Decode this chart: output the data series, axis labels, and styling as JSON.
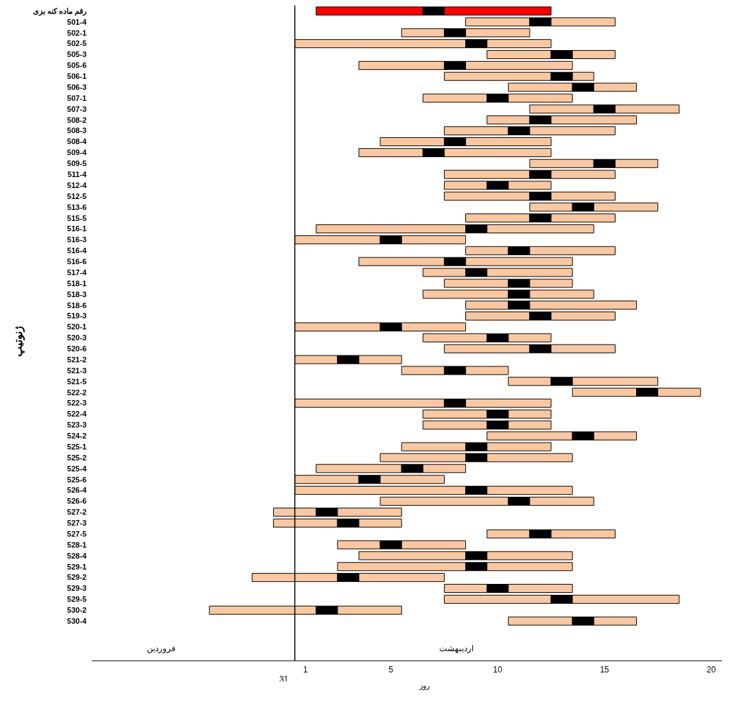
{
  "chart_data": {
    "type": "bar",
    "orientation": "horizontal",
    "xlabel": "روز",
    "ylabel": "ژنوتیپ",
    "categories": [
      "رقم ماده کنه بزی",
      "501-4",
      "502-1",
      "502-5",
      "505-3",
      "505-6",
      "506-1",
      "506-3",
      "507-1",
      "507-3",
      "508-2",
      "508-3",
      "508-4",
      "509-4",
      "509-5",
      "511-4",
      "512-4",
      "512-5",
      "513-6",
      "515-5",
      "516-1",
      "516-3",
      "516-4",
      "516-6",
      "517-4",
      "518-1",
      "518-3",
      "518-6",
      "519-3",
      "520-1",
      "520-3",
      "520-6",
      "521-2",
      "521-3",
      "521-5",
      "522-2",
      "522-3",
      "522-4",
      "523-3",
      "524-2",
      "525-1",
      "525-2",
      "525-4",
      "525-6",
      "526-4",
      "526-6",
      "527-2",
      "527-3",
      "527-5",
      "528-1",
      "528-4",
      "529-1",
      "529-2",
      "529-3",
      "529-5",
      "530-2",
      "530-4"
    ],
    "series": [
      {
        "color": "#f9c8a0",
        "colors": [
          "#ff0000",
          "#f9c8a0",
          "#f9c8a0",
          "#f9c8a0",
          "#f9c8a0",
          "#f9c8a0",
          "#f9c8a0",
          "#f9c8a0",
          "#f9c8a0",
          "#f9c8a0",
          "#f9c8a0",
          "#f9c8a0",
          "#f9c8a0",
          "#f9c8a0",
          "#f9c8a0",
          "#f9c8a0",
          "#f9c8a0",
          "#f9c8a0",
          "#f9c8a0",
          "#f9c8a0",
          "#f9c8a0",
          "#f9c8a0",
          "#f9c8a0",
          "#f9c8a0",
          "#f9c8a0",
          "#f9c8a0",
          "#f9c8a0",
          "#f9c8a0",
          "#f9c8a0",
          "#f9c8a0",
          "#f9c8a0",
          "#f9c8a0",
          "#f9c8a0",
          "#f9c8a0",
          "#f9c8a0",
          "#f9c8a0",
          "#f9c8a0",
          "#f9c8a0",
          "#f9c8a0",
          "#f9c8a0",
          "#f9c8a0",
          "#f9c8a0",
          "#f9c8a0",
          "#f9c8a0",
          "#f9c8a0",
          "#f9c8a0",
          "#f9c8a0",
          "#f9c8a0",
          "#f9c8a0",
          "#f9c8a0",
          "#f9c8a0",
          "#f9c8a0",
          "#f9c8a0",
          "#f9c8a0",
          "#f9c8a0",
          "#f9c8a0",
          "#f9c8a0"
        ],
        "base": [
          1.5,
          8.5,
          5.5,
          0.5,
          9.5,
          3.5,
          7.5,
          10.5,
          6.5,
          11.5,
          9.5,
          7.5,
          4.5,
          3.5,
          11.5,
          7.5,
          7.5,
          7.5,
          11.5,
          8.5,
          1.5,
          0.5,
          8.5,
          3.5,
          6.5,
          7.5,
          6.5,
          8.5,
          8.5,
          0.5,
          6.5,
          7.5,
          0.5,
          5.5,
          10.5,
          13.5,
          0.5,
          6.5,
          6.5,
          9.5,
          5.5,
          4.5,
          1.5,
          0.5,
          0.5,
          4.5,
          -0.5,
          -0.5,
          9.5,
          2.5,
          3.5,
          2.5,
          -1.5,
          7.5,
          7.5,
          -3.5,
          10.5
        ],
        "values": [
          5,
          3,
          2,
          8,
          3,
          4,
          5,
          3,
          3,
          3,
          2,
          3,
          3,
          3,
          3,
          4,
          2,
          4,
          2,
          3,
          7,
          4,
          2,
          4,
          2,
          3,
          4,
          2,
          3,
          4,
          3,
          4,
          2,
          2,
          2,
          3,
          7,
          3,
          3,
          4,
          3,
          4,
          4,
          3,
          8,
          6,
          2,
          3,
          2,
          2,
          5,
          6,
          4,
          2,
          5,
          5,
          3
        ]
      },
      {
        "color": "#000000",
        "base": [
          6.5,
          11.5,
          7.5,
          8.5,
          12.5,
          7.5,
          12.5,
          13.5,
          9.5,
          14.5,
          11.5,
          10.5,
          7.5,
          6.5,
          14.5,
          11.5,
          9.5,
          11.5,
          13.5,
          11.5,
          8.5,
          4.5,
          10.5,
          7.5,
          8.5,
          10.5,
          10.5,
          10.5,
          11.5,
          4.5,
          9.5,
          11.5,
          2.5,
          7.5,
          12.5,
          16.5,
          7.5,
          9.5,
          9.5,
          13.5,
          8.5,
          8.5,
          5.5,
          3.5,
          8.5,
          10.5,
          1.5,
          2.5,
          11.5,
          4.5,
          8.5,
          8.5,
          2.5,
          9.5,
          12.5,
          1.5,
          13.5
        ],
        "values": [
          1,
          1,
          1,
          1,
          1,
          1,
          1,
          1,
          1,
          1,
          1,
          1,
          1,
          1,
          1,
          1,
          1,
          1,
          1,
          1,
          1,
          1,
          1,
          1,
          1,
          1,
          1,
          1,
          1,
          1,
          1,
          1,
          1,
          1,
          1,
          1,
          1,
          1,
          1,
          1,
          1,
          1,
          1,
          1,
          1,
          1,
          1,
          1,
          1,
          1,
          1,
          1,
          1,
          1,
          1,
          1,
          1
        ]
      },
      {
        "color": "#f9c8a0",
        "colors": [
          "#ff0000",
          "#f9c8a0",
          "#f9c8a0",
          "#f9c8a0",
          "#f9c8a0",
          "#f9c8a0",
          "#f9c8a0",
          "#f9c8a0",
          "#f9c8a0",
          "#f9c8a0",
          "#f9c8a0",
          "#f9c8a0",
          "#f9c8a0",
          "#f9c8a0",
          "#f9c8a0",
          "#f9c8a0",
          "#f9c8a0",
          "#f9c8a0",
          "#f9c8a0",
          "#f9c8a0",
          "#f9c8a0",
          "#f9c8a0",
          "#f9c8a0",
          "#f9c8a0",
          "#f9c8a0",
          "#f9c8a0",
          "#f9c8a0",
          "#f9c8a0",
          "#f9c8a0",
          "#f9c8a0",
          "#f9c8a0",
          "#f9c8a0",
          "#f9c8a0",
          "#f9c8a0",
          "#f9c8a0",
          "#f9c8a0",
          "#f9c8a0",
          "#f9c8a0",
          "#f9c8a0",
          "#f9c8a0",
          "#f9c8a0",
          "#f9c8a0",
          "#f9c8a0",
          "#f9c8a0",
          "#f9c8a0",
          "#f9c8a0",
          "#f9c8a0",
          "#f9c8a0",
          "#f9c8a0",
          "#f9c8a0",
          "#f9c8a0",
          "#f9c8a0",
          "#f9c8a0",
          "#f9c8a0",
          "#f9c8a0",
          "#f9c8a0",
          "#f9c8a0"
        ],
        "base": [
          7.5,
          12.5,
          8.5,
          9.5,
          13.5,
          8.5,
          13.5,
          14.5,
          10.5,
          15.5,
          12.5,
          11.5,
          8.5,
          7.5,
          15.5,
          12.5,
          10.5,
          12.5,
          14.5,
          12.5,
          9.5,
          5.5,
          11.5,
          8.5,
          9.5,
          11.5,
          11.5,
          11.5,
          12.5,
          5.5,
          10.5,
          12.5,
          3.5,
          8.5,
          13.5,
          17.5,
          8.5,
          10.5,
          10.5,
          14.5,
          9.5,
          9.5,
          6.5,
          4.5,
          9.5,
          11.5,
          2.5,
          3.5,
          12.5,
          5.5,
          9.5,
          9.5,
          3.5,
          10.5,
          13.5,
          2.5,
          14.5
        ],
        "values": [
          5,
          3,
          3,
          3,
          2,
          5,
          1,
          2,
          3,
          3,
          4,
          4,
          4,
          5,
          2,
          3,
          2,
          3,
          3,
          3,
          5,
          3,
          4,
          5,
          4,
          2,
          3,
          5,
          3,
          3,
          2,
          3,
          2,
          2,
          4,
          2,
          4,
          2,
          2,
          2,
          3,
          4,
          2,
          3,
          4,
          3,
          3,
          2,
          3,
          3,
          4,
          4,
          4,
          3,
          5,
          3,
          2
        ]
      }
    ],
    "xlim": [
      -9,
      20.5
    ],
    "xticks": [
      1,
      5,
      10,
      15,
      20
    ],
    "ref_lines": [
      {
        "axis": "x",
        "value": 0.5,
        "color": "#000000"
      }
    ],
    "annotations": [
      "فروردین",
      "اردیبهشت",
      "31"
    ]
  }
}
